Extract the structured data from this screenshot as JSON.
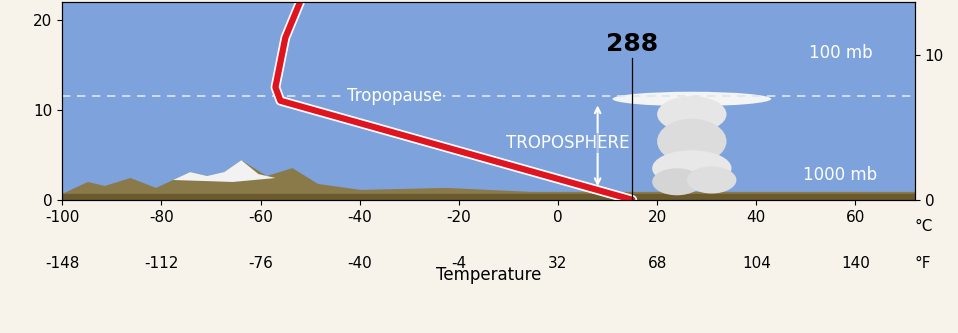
{
  "chart_data": {
    "type": "line",
    "xlabel": "Temperature",
    "x_unit": "°C",
    "x2_unit": "°F",
    "xlim": [
      -100,
      72
    ],
    "xticks": [
      -100,
      -80,
      -60,
      -40,
      -20,
      0,
      20,
      40,
      60
    ],
    "x2ticks": [
      {
        "value": -100,
        "label": "-148"
      },
      {
        "value": -80,
        "label": "-112"
      },
      {
        "value": -60,
        "label": "-76"
      },
      {
        "value": -40,
        "label": "-40"
      },
      {
        "value": -20,
        "label": "-4"
      },
      {
        "value": 0,
        "label": "32"
      },
      {
        "value": 20,
        "label": "68"
      },
      {
        "value": 40,
        "label": "104"
      },
      {
        "value": 60,
        "label": "140"
      }
    ],
    "ylim": [
      0,
      22
    ],
    "yticks": [
      0,
      10,
      20
    ],
    "y2lim": [
      0,
      13.67
    ],
    "y2ticks": [
      0,
      10
    ],
    "series": [
      {
        "color": "#e0141e",
        "line_style": "solid",
        "x": [
          15,
          -56,
          -57,
          -55,
          -52
        ],
        "values": [
          0,
          11,
          12.5,
          18,
          22
        ]
      }
    ],
    "tropopause": {
      "label": "Tropopause",
      "value": 11.5
    },
    "surface": {
      "label": "288",
      "x": 15
    },
    "annotations": {
      "layer": "TROPOSPHERE",
      "top_pressure": "100 mb",
      "bottom_pressure": "1000 mb"
    }
  }
}
